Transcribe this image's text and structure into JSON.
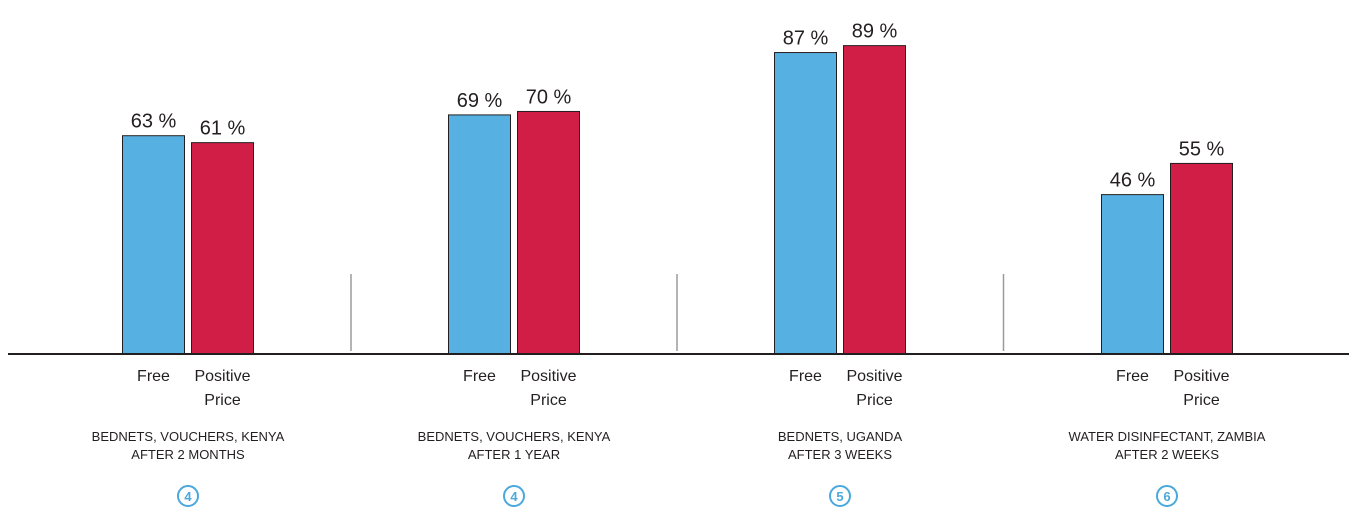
{
  "chart_data": {
    "type": "bar",
    "ylim": [
      0,
      100
    ],
    "grid": false,
    "series": [
      {
        "key": "free",
        "color": "#56b0e2"
      },
      {
        "key": "positive_price",
        "color": "#d01e47"
      }
    ],
    "groups": [
      {
        "category_labels": [
          [
            "Free"
          ],
          [
            "Positive",
            "Price"
          ]
        ],
        "values": [
          63,
          61
        ],
        "value_labels": [
          "63 %",
          "61 %"
        ],
        "title_lines": [
          "BEDNETS, VOUCHERS, KENYA",
          "AFTER 2 MONTHS"
        ],
        "ref": "4"
      },
      {
        "category_labels": [
          [
            "Free"
          ],
          [
            "Positive",
            "Price"
          ]
        ],
        "values": [
          69,
          70
        ],
        "value_labels": [
          "69 %",
          "70 %"
        ],
        "title_lines": [
          "BEDNETS, VOUCHERS, KENYA",
          "AFTER 1 YEAR"
        ],
        "ref": "4"
      },
      {
        "category_labels": [
          [
            "Free"
          ],
          [
            "Positive",
            "Price"
          ]
        ],
        "values": [
          87,
          89
        ],
        "value_labels": [
          "87 %",
          "89 %"
        ],
        "title_lines": [
          "BEDNETS, UGANDA",
          "AFTER 3 WEEKS"
        ],
        "ref": "5"
      },
      {
        "category_labels": [
          [
            "Free"
          ],
          [
            "Positive",
            "Price"
          ]
        ],
        "values": [
          46,
          55
        ],
        "value_labels": [
          "46 %",
          "55 %"
        ],
        "title_lines": [
          "WATER DISINFECTANT, ZAMBIA",
          "AFTER 2 WEEKS"
        ],
        "ref": "6"
      }
    ]
  },
  "colors": {
    "axis": "#231f20",
    "divider": "#9a9a9a",
    "ref_circle": "#4aa8dc",
    "bar_outline": "#231f20"
  }
}
